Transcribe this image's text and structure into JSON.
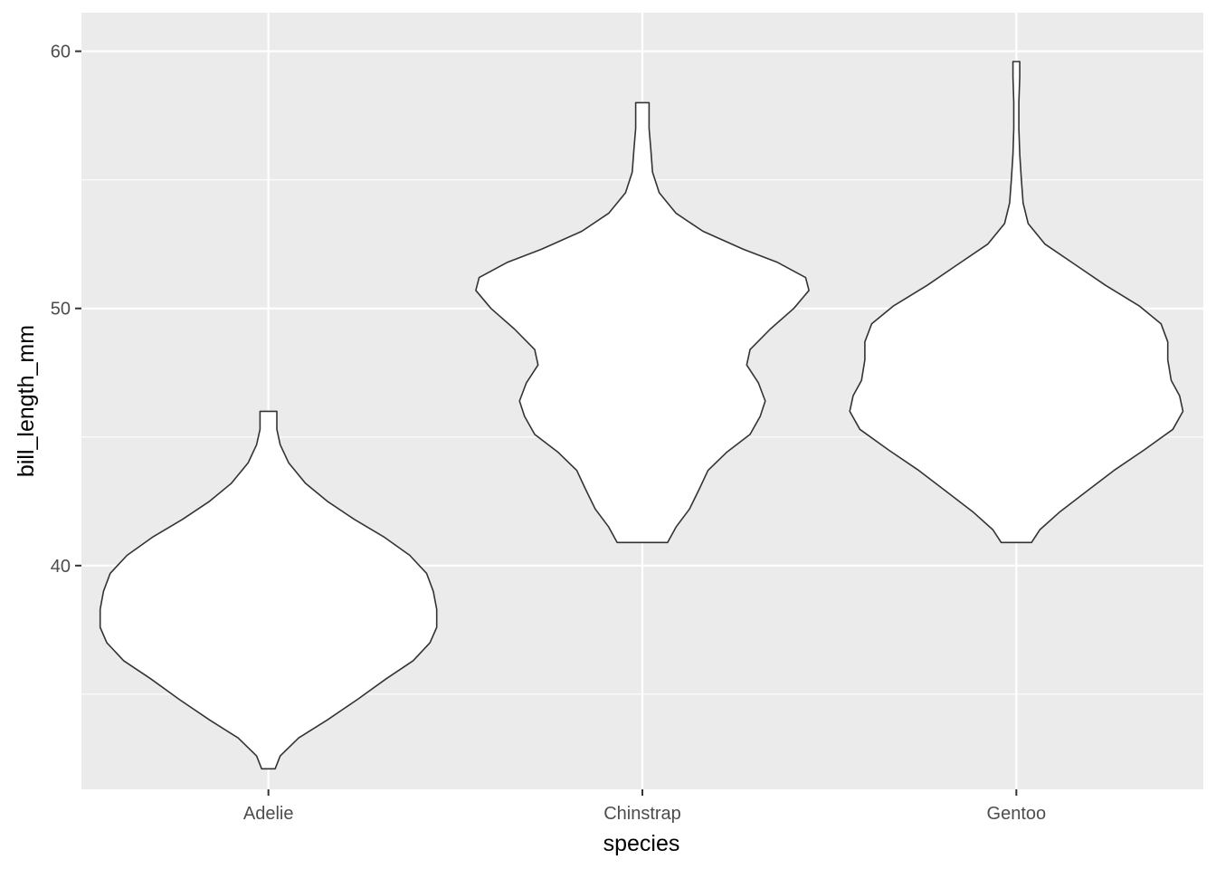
{
  "chart_data": {
    "type": "violin",
    "title": "",
    "xlabel": "species",
    "ylabel": "bill_length_mm",
    "categories": [
      "Adelie",
      "Chinstrap",
      "Gentoo"
    ],
    "ylim": [
      31.3,
      61.5
    ],
    "yticks": [
      40,
      50,
      60
    ],
    "ytick_labels": [
      "40",
      "50",
      "60"
    ],
    "grid": true,
    "colors": {
      "panel": "#ebebeb",
      "grid": "#ffffff",
      "outline": "#333333",
      "fill": "#ffffff"
    },
    "series": [
      {
        "name": "Adelie",
        "min": 32.1,
        "max": 46.0,
        "profile": [
          [
            32.1,
            0.04
          ],
          [
            32.6,
            0.07
          ],
          [
            33.3,
            0.18
          ],
          [
            34.0,
            0.35
          ],
          [
            34.8,
            0.53
          ],
          [
            35.6,
            0.7
          ],
          [
            36.3,
            0.86
          ],
          [
            37.0,
            0.96
          ],
          [
            37.6,
            1.0
          ],
          [
            38.3,
            1.0
          ],
          [
            39.0,
            0.98
          ],
          [
            39.7,
            0.94
          ],
          [
            40.4,
            0.84
          ],
          [
            41.1,
            0.69
          ],
          [
            41.8,
            0.51
          ],
          [
            42.5,
            0.35
          ],
          [
            43.2,
            0.22
          ],
          [
            44.0,
            0.12
          ],
          [
            44.7,
            0.07
          ],
          [
            45.3,
            0.05
          ],
          [
            46.0,
            0.05
          ]
        ]
      },
      {
        "name": "Chinstrap",
        "min": 40.9,
        "max": 58.0,
        "profile": [
          [
            40.9,
            0.15
          ],
          [
            41.5,
            0.2
          ],
          [
            42.2,
            0.28
          ],
          [
            43.0,
            0.34
          ],
          [
            43.7,
            0.39
          ],
          [
            44.4,
            0.5
          ],
          [
            45.1,
            0.64
          ],
          [
            45.8,
            0.7
          ],
          [
            46.4,
            0.73
          ],
          [
            47.1,
            0.69
          ],
          [
            47.8,
            0.62
          ],
          [
            48.4,
            0.64
          ],
          [
            49.2,
            0.76
          ],
          [
            50.0,
            0.9
          ],
          [
            50.7,
            0.99
          ],
          [
            51.2,
            0.97
          ],
          [
            51.8,
            0.8
          ],
          [
            52.3,
            0.6
          ],
          [
            53.0,
            0.36
          ],
          [
            53.7,
            0.2
          ],
          [
            54.5,
            0.1
          ],
          [
            55.3,
            0.06
          ],
          [
            56.2,
            0.05
          ],
          [
            57.0,
            0.04
          ],
          [
            58.0,
            0.04
          ]
        ]
      },
      {
        "name": "Gentoo",
        "min": 40.9,
        "max": 59.6,
        "profile": [
          [
            40.9,
            0.09
          ],
          [
            41.4,
            0.14
          ],
          [
            42.1,
            0.26
          ],
          [
            42.9,
            0.42
          ],
          [
            43.7,
            0.58
          ],
          [
            44.5,
            0.76
          ],
          [
            45.3,
            0.93
          ],
          [
            46.0,
            0.99
          ],
          [
            46.6,
            0.97
          ],
          [
            47.2,
            0.92
          ],
          [
            48.0,
            0.9
          ],
          [
            48.7,
            0.9
          ],
          [
            49.4,
            0.86
          ],
          [
            50.1,
            0.73
          ],
          [
            50.9,
            0.53
          ],
          [
            51.7,
            0.35
          ],
          [
            52.5,
            0.17
          ],
          [
            53.3,
            0.07
          ],
          [
            54.1,
            0.04
          ],
          [
            55.0,
            0.03
          ],
          [
            56.0,
            0.02
          ],
          [
            57.0,
            0.015
          ],
          [
            58.0,
            0.015
          ],
          [
            59.0,
            0.02
          ],
          [
            59.6,
            0.02
          ]
        ]
      }
    ]
  }
}
